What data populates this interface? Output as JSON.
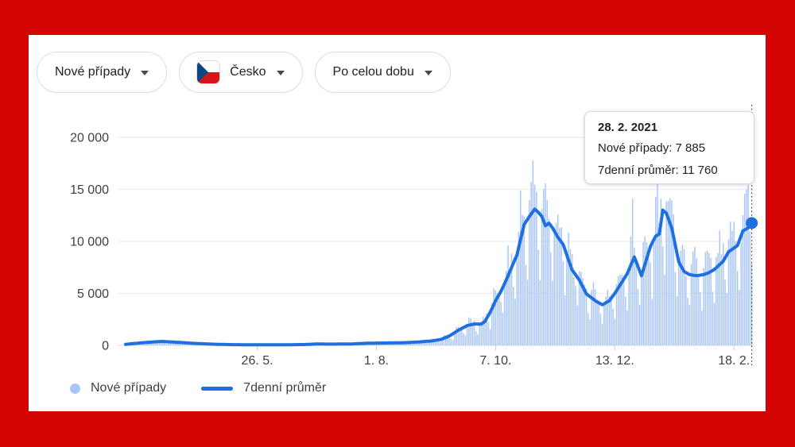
{
  "frame_color": "#d40404",
  "toolbar": {
    "metric_label": "Nové případy",
    "region_label": "Česko",
    "region_flag": "czech-flag",
    "range_label": "Po celou dobu"
  },
  "tooltip": {
    "title": "28. 2. 2021",
    "new_cases_line": "Nové případy: 7 885",
    "avg_line": "7denní průměr: 11 760"
  },
  "legend": {
    "items": [
      {
        "label": "Nové případy",
        "swatch": "dot",
        "color": "#a9c6f7"
      },
      {
        "label": "7denní průměr",
        "swatch": "line",
        "color": "#1e6fe0"
      }
    ]
  },
  "chart_data": {
    "type": "bar",
    "title": "",
    "xlabel": "",
    "ylabel": "",
    "grid": true,
    "ylim": [
      0,
      20000
    ],
    "start_date": "2020-03-13",
    "end_date": "2021-02-28",
    "x_ticks": [
      {
        "date": "2020-05-26",
        "label": "26. 5."
      },
      {
        "date": "2020-08-01",
        "label": "1. 8."
      },
      {
        "date": "2020-10-07",
        "label": "7. 10."
      },
      {
        "date": "2020-12-13",
        "label": "13. 12."
      },
      {
        "date": "2021-02-18",
        "label": "18. 2."
      }
    ],
    "y_ticks": [
      {
        "value": 0,
        "label": "0"
      },
      {
        "value": 5000,
        "label": "5 000"
      },
      {
        "value": 10000,
        "label": "10 000"
      },
      {
        "value": 15000,
        "label": "15 000"
      },
      {
        "value": 20000,
        "label": "20 000"
      }
    ],
    "series": [
      {
        "name": "Nové případy",
        "type": "bar",
        "color": "#a9c6f7",
        "weekday_pattern": {
          "0": 0.52,
          "1": 1.03,
          "2": 1.23,
          "3": 1.26,
          "4": 1.16,
          "5": 1.07,
          "6": 0.74
        },
        "spikes": {
          "2020-10-21": 14900,
          "2020-10-27": 15700,
          "2020-11-03": 15000,
          "2020-11-04": 15600,
          "2020-12-23": 14100,
          "2021-01-06": 15500,
          "2021-02-25": 15000,
          "2021-02-26": 15400,
          "2021-02-27": 11000,
          "2021-02-28": 7885
        }
      },
      {
        "name": "7denní průměr",
        "type": "line",
        "color": "#1e6fe0",
        "stroke_width": 4,
        "points": [
          [
            "2020-03-13",
            100
          ],
          [
            "2020-03-22",
            250
          ],
          [
            "2020-04-02",
            380
          ],
          [
            "2020-04-12",
            290
          ],
          [
            "2020-04-22",
            180
          ],
          [
            "2020-05-02",
            110
          ],
          [
            "2020-05-12",
            70
          ],
          [
            "2020-05-26",
            55
          ],
          [
            "2020-06-08",
            50
          ],
          [
            "2020-06-21",
            80
          ],
          [
            "2020-06-28",
            130
          ],
          [
            "2020-07-08",
            120
          ],
          [
            "2020-07-18",
            140
          ],
          [
            "2020-07-28",
            210
          ],
          [
            "2020-08-07",
            230
          ],
          [
            "2020-08-17",
            260
          ],
          [
            "2020-08-25",
            330
          ],
          [
            "2020-09-01",
            430
          ],
          [
            "2020-09-06",
            560
          ],
          [
            "2020-09-11",
            900
          ],
          [
            "2020-09-16",
            1450
          ],
          [
            "2020-09-21",
            1900
          ],
          [
            "2020-09-25",
            2050
          ],
          [
            "2020-09-29",
            2050
          ],
          [
            "2020-10-01",
            2300
          ],
          [
            "2020-10-04",
            3200
          ],
          [
            "2020-10-07",
            4300
          ],
          [
            "2020-10-10",
            5200
          ],
          [
            "2020-10-13",
            6300
          ],
          [
            "2020-10-16",
            7500
          ],
          [
            "2020-10-19",
            8700
          ],
          [
            "2020-10-23",
            11600
          ],
          [
            "2020-10-26",
            12400
          ],
          [
            "2020-10-29",
            13100
          ],
          [
            "2020-10-31",
            12800
          ],
          [
            "2020-11-02",
            12400
          ],
          [
            "2020-11-04",
            11500
          ],
          [
            "2020-11-06",
            11750
          ],
          [
            "2020-11-08",
            11300
          ],
          [
            "2020-11-11",
            10400
          ],
          [
            "2020-11-14",
            9700
          ],
          [
            "2020-11-16",
            8700
          ],
          [
            "2020-11-19",
            7250
          ],
          [
            "2020-11-23",
            6300
          ],
          [
            "2020-11-27",
            4960
          ],
          [
            "2020-12-02",
            4300
          ],
          [
            "2020-12-06",
            3900
          ],
          [
            "2020-12-10",
            4300
          ],
          [
            "2020-12-13",
            5000
          ],
          [
            "2020-12-16",
            5800
          ],
          [
            "2020-12-20",
            6900
          ],
          [
            "2020-12-24",
            8500
          ],
          [
            "2020-12-28",
            6700
          ],
          [
            "2021-01-02",
            9500
          ],
          [
            "2021-01-05",
            10500
          ],
          [
            "2021-01-07",
            10700
          ],
          [
            "2021-01-09",
            13000
          ],
          [
            "2021-01-11",
            12700
          ],
          [
            "2021-01-14",
            11300
          ],
          [
            "2021-01-18",
            8000
          ],
          [
            "2021-01-21",
            7100
          ],
          [
            "2021-01-24",
            6800
          ],
          [
            "2021-01-28",
            6700
          ],
          [
            "2021-02-01",
            6800
          ],
          [
            "2021-02-04",
            7000
          ],
          [
            "2021-02-07",
            7300
          ],
          [
            "2021-02-12",
            8100
          ],
          [
            "2021-02-15",
            9000
          ],
          [
            "2021-02-20",
            9600
          ],
          [
            "2021-02-23",
            11000
          ],
          [
            "2021-02-26",
            11300
          ],
          [
            "2021-02-28",
            11760
          ]
        ]
      }
    ],
    "highlight": {
      "date": "2021-02-28",
      "new_cases": 7885,
      "avg_7day": 11760,
      "marker_color": "#1e6fe0",
      "crosshair": "dotted"
    },
    "legend_position": "bottom-left"
  }
}
